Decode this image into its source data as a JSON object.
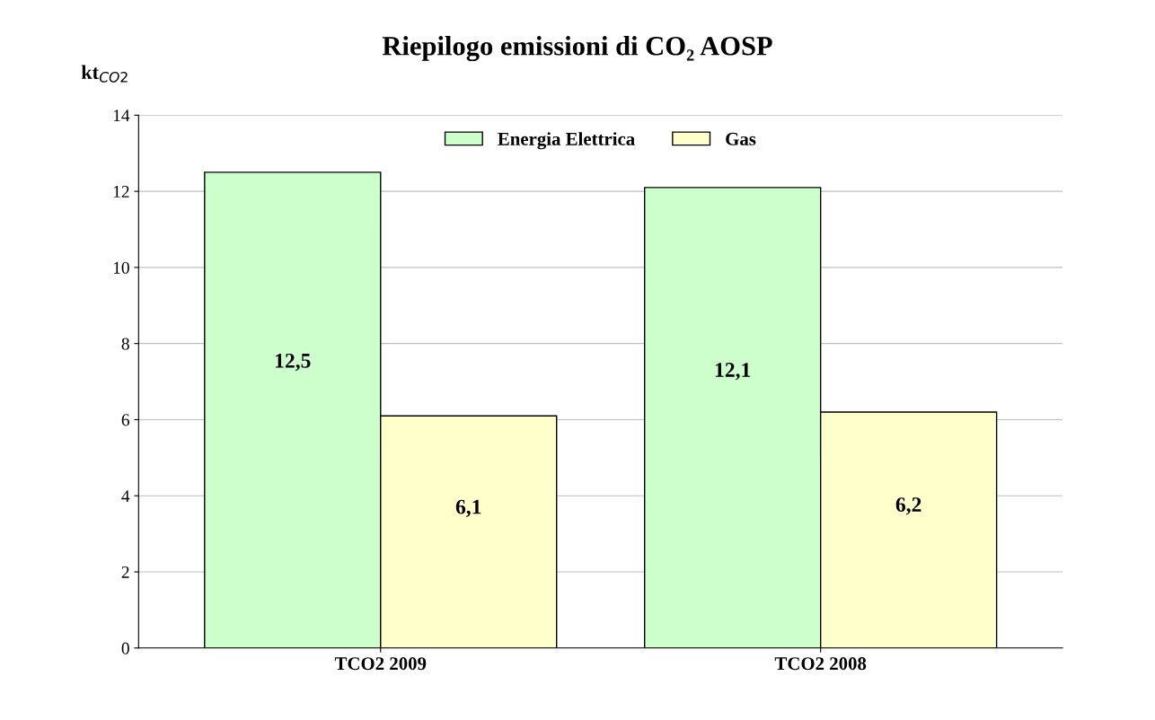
{
  "chart_data": {
    "type": "bar",
    "title": "Riepilogo emissioni di CO₂ AOSP",
    "ylabel": "kt$_{CO2}$",
    "categories": [
      "TCO2 2009",
      "TCO2 2008"
    ],
    "series": [
      {
        "name": "Energia Elettrica",
        "color": "#ccffcc",
        "values": [
          12.5,
          12.1
        ],
        "value_labels": [
          "12,5",
          "12,1"
        ]
      },
      {
        "name": "Gas",
        "color": "#ffffcc",
        "values": [
          6.1,
          6.2
        ],
        "value_labels": [
          "6,1",
          "6,2"
        ]
      }
    ],
    "ylim": [
      0,
      14
    ],
    "yticks": [
      0,
      2,
      4,
      6,
      8,
      10,
      12,
      14
    ],
    "grid": "y",
    "legend": "top"
  }
}
